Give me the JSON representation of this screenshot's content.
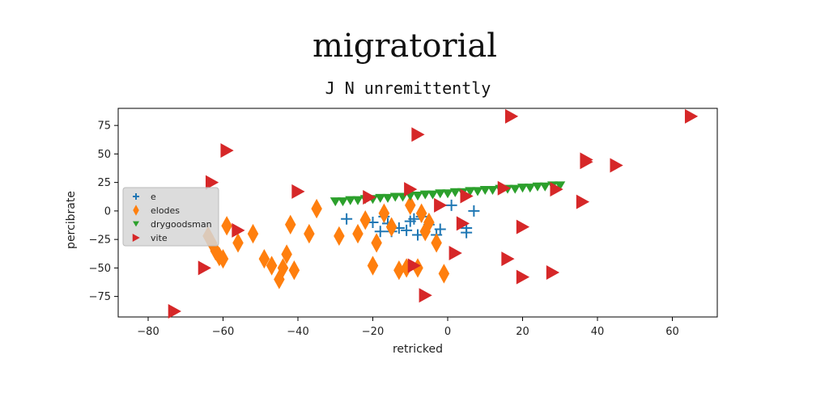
{
  "chart_data": {
    "type": "scatter",
    "title": "migratorial",
    "subtitle": "J N unremittently",
    "xlabel": "retricked",
    "ylabel": "percibrate",
    "xlim": [
      -88,
      72
    ],
    "ylim": [
      -93,
      90
    ],
    "xticks": [
      -80,
      -60,
      -40,
      -20,
      0,
      20,
      40,
      60
    ],
    "yticks": [
      75,
      50,
      25,
      0,
      -25,
      -50,
      -75
    ],
    "xtick_labels": [
      "−80",
      "−60",
      "−40",
      "−20",
      "0",
      "20",
      "40",
      "60"
    ],
    "ytick_labels": [
      "75",
      "50",
      "25",
      "0",
      "−25",
      "−50",
      "−75"
    ],
    "grid": false,
    "legend_position": "center-left",
    "colors": {
      "e": "#1f77b4",
      "elodes": "#ff7f0e",
      "drygoodsman": "#2ca02c",
      "vite": "#d62728"
    },
    "series": [
      {
        "name": "e",
        "marker": "plus",
        "points": [
          [
            -27,
            -7
          ],
          [
            -20,
            -10
          ],
          [
            -18,
            -18
          ],
          [
            -17,
            -5
          ],
          [
            -16,
            -11
          ],
          [
            -15,
            -18
          ],
          [
            -13,
            -15
          ],
          [
            -11,
            -17
          ],
          [
            -10,
            -9
          ],
          [
            -9,
            -7
          ],
          [
            -8,
            -21
          ],
          [
            -7,
            -5
          ],
          [
            -5,
            -12
          ],
          [
            -3,
            -21
          ],
          [
            -2,
            -16
          ],
          [
            1,
            5
          ],
          [
            5,
            -15
          ],
          [
            5,
            -19
          ],
          [
            7,
            0
          ]
        ]
      },
      {
        "name": "elodes",
        "marker": "thin_diamond",
        "points": [
          [
            -64,
            -22
          ],
          [
            -63,
            -28
          ],
          [
            -62,
            -35
          ],
          [
            -61,
            -40
          ],
          [
            -60,
            -42
          ],
          [
            -59,
            -13
          ],
          [
            -56,
            -28
          ],
          [
            -52,
            -20
          ],
          [
            -49,
            -42
          ],
          [
            -47,
            -48
          ],
          [
            -45,
            -60
          ],
          [
            -44,
            -50
          ],
          [
            -43,
            -38
          ],
          [
            -42,
            -12
          ],
          [
            -41,
            -52
          ],
          [
            -37,
            -20
          ],
          [
            -35,
            2
          ],
          [
            -29,
            -22
          ],
          [
            -24,
            -20
          ],
          [
            -22,
            -8
          ],
          [
            -20,
            -48
          ],
          [
            -19,
            -28
          ],
          [
            -17,
            -2
          ],
          [
            -15,
            -14
          ],
          [
            -13,
            -52
          ],
          [
            -11,
            -50
          ],
          [
            -10,
            5
          ],
          [
            -8,
            -50
          ],
          [
            -7,
            -2
          ],
          [
            -6,
            -18
          ],
          [
            -5,
            -10
          ],
          [
            -3,
            -28
          ],
          [
            -1,
            -55
          ]
        ]
      },
      {
        "name": "drygoodsman",
        "marker": "triangle_down",
        "points": [
          [
            -30,
            8
          ],
          [
            -28,
            8
          ],
          [
            -26,
            9
          ],
          [
            -24,
            9
          ],
          [
            -22,
            10
          ],
          [
            -20,
            10
          ],
          [
            -18,
            11
          ],
          [
            -16,
            11
          ],
          [
            -14,
            12
          ],
          [
            -12,
            12
          ],
          [
            -10,
            13
          ],
          [
            -8,
            13
          ],
          [
            -6,
            14
          ],
          [
            -4,
            14
          ],
          [
            -2,
            15
          ],
          [
            0,
            15
          ],
          [
            2,
            16
          ],
          [
            4,
            16
          ],
          [
            6,
            17
          ],
          [
            8,
            17
          ],
          [
            10,
            18
          ],
          [
            12,
            18
          ],
          [
            14,
            19
          ],
          [
            16,
            19
          ],
          [
            18,
            19
          ],
          [
            20,
            20
          ],
          [
            22,
            20
          ],
          [
            24,
            21
          ],
          [
            26,
            21
          ],
          [
            28,
            22
          ],
          [
            30,
            22
          ]
        ]
      },
      {
        "name": "vite",
        "marker": "triangle_right",
        "points": [
          [
            -73,
            -88
          ],
          [
            -65,
            -50
          ],
          [
            -63,
            25
          ],
          [
            -59,
            53
          ],
          [
            -56,
            -17
          ],
          [
            -40,
            17
          ],
          [
            -21,
            12
          ],
          [
            -10,
            19
          ],
          [
            -9,
            -48
          ],
          [
            -8,
            67
          ],
          [
            -6,
            -74
          ],
          [
            -2,
            5
          ],
          [
            2,
            -37
          ],
          [
            4,
            -11
          ],
          [
            5,
            13
          ],
          [
            15,
            20
          ],
          [
            16,
            -42
          ],
          [
            17,
            83
          ],
          [
            20,
            -14
          ],
          [
            20,
            -58
          ],
          [
            28,
            -54
          ],
          [
            29,
            19
          ],
          [
            36,
            8
          ],
          [
            37,
            43
          ],
          [
            37,
            45
          ],
          [
            45,
            40
          ],
          [
            65,
            83
          ]
        ]
      }
    ]
  }
}
